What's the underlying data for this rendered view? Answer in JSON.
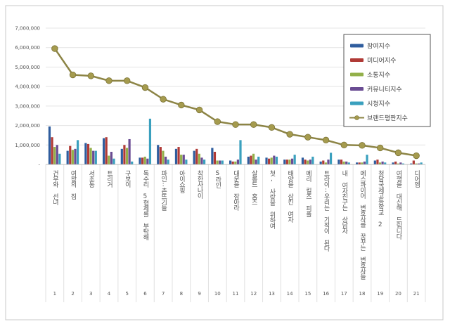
{
  "chart_data": {
    "type": "bar",
    "title": "",
    "xlabel": "",
    "ylabel": "",
    "ylim": [
      0,
      7000000
    ],
    "yticks": [
      "-",
      "1,000,000",
      "2,000,000",
      "3,000,000",
      "4,000,000",
      "5,000,000",
      "6,000,000",
      "7,000,000"
    ],
    "grid": true,
    "legend_position": "top-right",
    "categories": [
      "건우와 선녀",
      "여왕의 집",
      "서초동",
      "트리거",
      "구보이",
      "독수리 5형제를 부탁해",
      "파인:촌뜨기들",
      "아이쇼핑",
      "착한사나이",
      "S라인",
      "대운을 잡아라",
      "살롱드 홈즈",
      "첫, 사랑을 위하여",
      "태양을 삼킨 여자",
      "메리 킬즈 피플",
      "트라이:우리는 기적이 된다",
      "내 여자친구는 상남자",
      "에스콰이어 변호사를 꿈꾸는 변호사들",
      "청담국제고등학교 2",
      "여행을 대신해 드립니다",
      "디어엠"
    ],
    "ranks": [
      "1",
      "2",
      "3",
      "4",
      "5",
      "6",
      "7",
      "8",
      "9",
      "10",
      "11",
      "12",
      "13",
      "14",
      "15",
      "16",
      "17",
      "18",
      "19",
      "20",
      "21"
    ],
    "series": [
      {
        "name": "참여지수",
        "type": "bar",
        "color": "#2f5d9e",
        "values": [
          1950000,
          700000,
          1100000,
          1350000,
          800000,
          350000,
          1000000,
          800000,
          700000,
          850000,
          200000,
          400000,
          350000,
          250000,
          350000,
          150000,
          250000,
          100000,
          200000,
          100000,
          50000
        ]
      },
      {
        "name": "미디어지수",
        "type": "bar",
        "color": "#b03a36",
        "values": [
          1400000,
          950000,
          1050000,
          1400000,
          1000000,
          350000,
          900000,
          900000,
          800000,
          650000,
          150000,
          450000,
          300000,
          250000,
          250000,
          200000,
          250000,
          100000,
          250000,
          150000,
          200000
        ]
      },
      {
        "name": "소통지수",
        "type": "bar",
        "color": "#93b04a",
        "values": [
          900000,
          750000,
          850000,
          450000,
          850000,
          400000,
          700000,
          500000,
          550000,
          200000,
          150000,
          550000,
          350000,
          250000,
          200000,
          100000,
          150000,
          100000,
          100000,
          50000,
          50000
        ]
      },
      {
        "name": "커뮤니티지수",
        "type": "bar",
        "color": "#6a4c93",
        "values": [
          1000000,
          800000,
          700000,
          650000,
          1300000,
          300000,
          400000,
          500000,
          350000,
          200000,
          250000,
          250000,
          450000,
          300000,
          250000,
          250000,
          150000,
          150000,
          150000,
          100000,
          50000
        ]
      },
      {
        "name": "시청지수",
        "type": "bar",
        "color": "#3aa0be",
        "values": [
          550000,
          1250000,
          700000,
          300000,
          150000,
          2350000,
          250000,
          250000,
          250000,
          200000,
          1250000,
          400000,
          400000,
          500000,
          400000,
          600000,
          100000,
          500000,
          100000,
          50000,
          100000
        ]
      },
      {
        "name": "브랜드평판지수",
        "type": "line",
        "color": "#8c8445",
        "values": [
          5950000,
          4600000,
          4550000,
          4300000,
          4300000,
          3950000,
          3350000,
          3050000,
          2800000,
          2200000,
          2050000,
          2050000,
          1900000,
          1550000,
          1400000,
          1250000,
          1000000,
          980000,
          850000,
          600000,
          450000
        ]
      }
    ]
  }
}
